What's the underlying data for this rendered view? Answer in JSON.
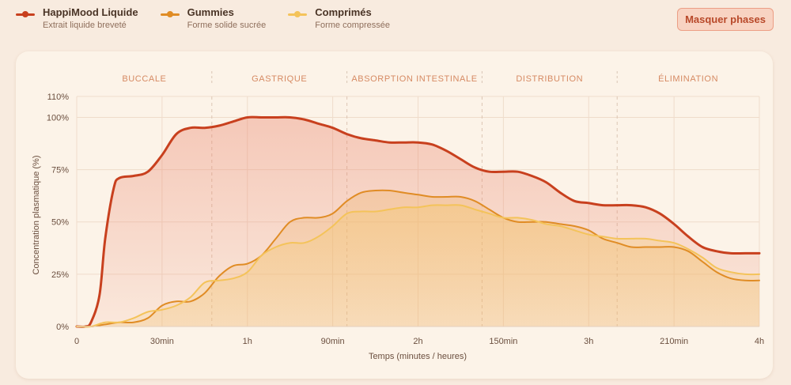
{
  "legend": [
    {
      "name": "HappiMood Liquide",
      "subtitle": "Extrait liquide breveté",
      "color": "#c8401e"
    },
    {
      "name": "Gummies",
      "subtitle": "Forme solide sucrée",
      "color": "#e08c25"
    },
    {
      "name": "Comprimés",
      "subtitle": "Forme compressée",
      "color": "#f4c35a"
    }
  ],
  "toolbar": {
    "toggle_phases_label": "Masquer phases"
  },
  "chart_data": {
    "type": "area",
    "xlabel": "Temps (minutes / heures)",
    "ylabel": "Concentration plasmatique (%)",
    "xlim": [
      0,
      240
    ],
    "ylim": [
      0,
      110
    ],
    "x_ticks": [
      {
        "value": 0,
        "label": "0"
      },
      {
        "value": 30,
        "label": "30min"
      },
      {
        "value": 60,
        "label": "1h"
      },
      {
        "value": 90,
        "label": "90min"
      },
      {
        "value": 120,
        "label": "2h"
      },
      {
        "value": 150,
        "label": "150min"
      },
      {
        "value": 180,
        "label": "3h"
      },
      {
        "value": 210,
        "label": "210min"
      },
      {
        "value": 240,
        "label": "4h"
      }
    ],
    "y_ticks": [
      {
        "value": 0,
        "label": "0%"
      },
      {
        "value": 25,
        "label": "25%"
      },
      {
        "value": 50,
        "label": "50%"
      },
      {
        "value": 75,
        "label": "75%"
      },
      {
        "value": 100,
        "label": "100%"
      },
      {
        "value": 110,
        "label": "110%"
      }
    ],
    "phases": [
      {
        "label": "BUCCALE",
        "start": 0,
        "end": 47.5
      },
      {
        "label": "GASTRIQUE",
        "start": 47.5,
        "end": 95
      },
      {
        "label": "ABSORPTION INTESTINALE",
        "start": 95,
        "end": 142.5
      },
      {
        "label": "DISTRIBUTION",
        "start": 142.5,
        "end": 190
      },
      {
        "label": "ÉLIMINATION",
        "start": 190,
        "end": 240
      }
    ],
    "series": [
      {
        "name": "HappiMood Liquide",
        "color": "#c8401e",
        "x": [
          0,
          3,
          5,
          8,
          10,
          13,
          15,
          20,
          25,
          30,
          35,
          40,
          45,
          50,
          55,
          60,
          65,
          70,
          75,
          80,
          85,
          90,
          95,
          100,
          105,
          110,
          115,
          120,
          125,
          130,
          135,
          140,
          145,
          150,
          155,
          160,
          165,
          170,
          175,
          180,
          185,
          190,
          195,
          200,
          205,
          210,
          215,
          220,
          225,
          230,
          235,
          240
        ],
        "y": [
          0,
          0,
          2,
          15,
          42,
          66,
          71,
          72,
          74,
          82,
          92,
          95,
          95,
          96,
          98,
          100,
          100,
          100,
          100,
          99,
          97,
          95,
          92,
          90,
          89,
          88,
          88,
          88,
          87,
          84,
          80,
          76,
          74,
          74,
          74,
          72,
          69,
          64,
          60,
          59,
          58,
          58,
          58,
          57,
          54,
          49,
          43,
          38,
          36,
          35,
          35,
          35
        ]
      },
      {
        "name": "Gummies",
        "color": "#e08c25",
        "x": [
          0,
          5,
          10,
          15,
          20,
          25,
          30,
          35,
          40,
          45,
          50,
          55,
          60,
          65,
          70,
          75,
          80,
          85,
          90,
          95,
          100,
          105,
          110,
          115,
          120,
          125,
          130,
          135,
          140,
          145,
          150,
          155,
          160,
          165,
          170,
          175,
          180,
          185,
          190,
          195,
          200,
          205,
          210,
          215,
          220,
          225,
          230,
          235,
          240
        ],
        "y": [
          0,
          0,
          1,
          2,
          2,
          4,
          10,
          12,
          12,
          16,
          24,
          29,
          30,
          34,
          42,
          50,
          52,
          52,
          54,
          60,
          64,
          65,
          65,
          64,
          63,
          62,
          62,
          62,
          60,
          56,
          52,
          50,
          50,
          50,
          49,
          48,
          46,
          42,
          40,
          38,
          38,
          38,
          38,
          36,
          31,
          26,
          23,
          22,
          22
        ]
      },
      {
        "name": "Comprimés",
        "color": "#f4c35a",
        "x": [
          0,
          5,
          10,
          15,
          20,
          25,
          30,
          35,
          40,
          45,
          50,
          55,
          60,
          65,
          70,
          75,
          80,
          85,
          90,
          95,
          100,
          105,
          110,
          115,
          120,
          125,
          130,
          135,
          140,
          145,
          150,
          155,
          160,
          165,
          170,
          175,
          180,
          185,
          190,
          195,
          200,
          205,
          210,
          215,
          220,
          225,
          230,
          235,
          240
        ],
        "y": [
          0,
          0,
          2,
          2,
          4,
          7,
          8,
          10,
          14,
          21,
          22,
          23,
          26,
          34,
          38,
          40,
          40,
          43,
          48,
          54,
          55,
          55,
          56,
          57,
          57,
          58,
          58,
          58,
          56,
          54,
          52,
          52,
          51,
          49,
          48,
          46,
          44,
          43,
          42,
          42,
          42,
          41,
          40,
          37,
          33,
          28,
          26,
          25,
          25
        ]
      }
    ]
  }
}
